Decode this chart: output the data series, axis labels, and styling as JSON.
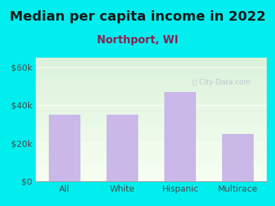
{
  "title": "Median per capita income in 2022",
  "subtitle": "Northport, WI",
  "categories": [
    "All",
    "White",
    "Hispanic",
    "Multirace"
  ],
  "values": [
    35000,
    35000,
    47000,
    25000
  ],
  "bar_color": "#c9b8e8",
  "background_outer": "#00eeee",
  "title_color": "#1a1a1a",
  "subtitle_color": "#8b2252",
  "tick_color": "#4a4a4a",
  "axis_color": "#999999",
  "ylim": [
    0,
    65000
  ],
  "yticks": [
    0,
    20000,
    40000,
    60000
  ],
  "ytick_labels": [
    "$0",
    "$20k",
    "$40k",
    "$60k"
  ],
  "title_fontsize": 14,
  "subtitle_fontsize": 11,
  "tick_fontsize": 9,
  "watermark": "City-Data.com"
}
